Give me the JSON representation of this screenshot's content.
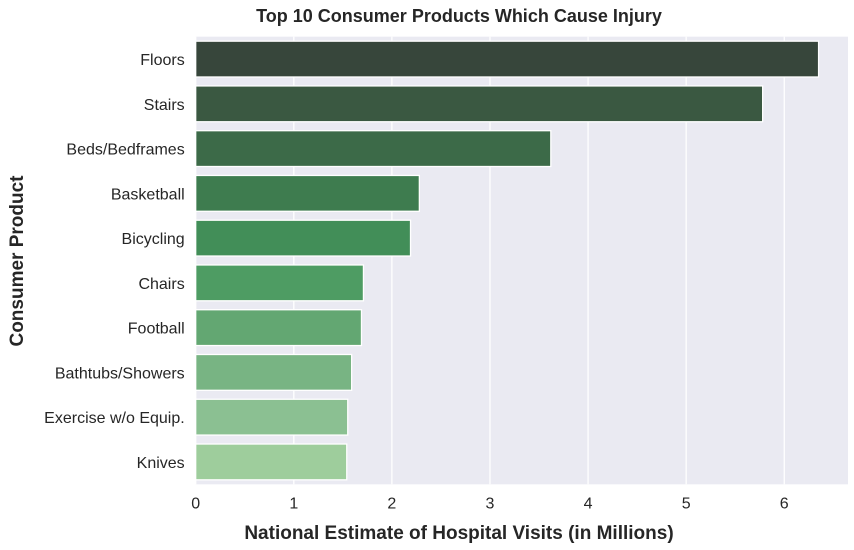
{
  "chart_data": {
    "type": "bar",
    "orientation": "horizontal",
    "title": "Top 10 Consumer Products Which Cause Injury",
    "xlabel": "National Estimate of Hospital Visits (in Millions)",
    "ylabel": "Consumer Product",
    "categories": [
      "Floors",
      "Stairs",
      "Beds/Bedframes",
      "Basketball",
      "Bicycling",
      "Chairs",
      "Football",
      "Bathtubs/Showers",
      "Exercise w/o Equip.",
      "Knives"
    ],
    "values": [
      6.35,
      5.78,
      3.62,
      2.28,
      2.19,
      1.71,
      1.69,
      1.59,
      1.55,
      1.54
    ],
    "colors": [
      "#37463b",
      "#3a5841",
      "#3c6a48",
      "#3e7c4f",
      "#428e58",
      "#4e9c63",
      "#63a772",
      "#78b483",
      "#8bc092",
      "#9ecd9c"
    ],
    "xticks": [
      0,
      1,
      2,
      3,
      4,
      5,
      6
    ],
    "xticklabels": [
      "0",
      "1",
      "2",
      "3",
      "4",
      "5",
      "6"
    ],
    "xlim": [
      0,
      6.65
    ],
    "grid": true,
    "background": "#eaeaf2",
    "gridcolor": "#ffffff"
  }
}
